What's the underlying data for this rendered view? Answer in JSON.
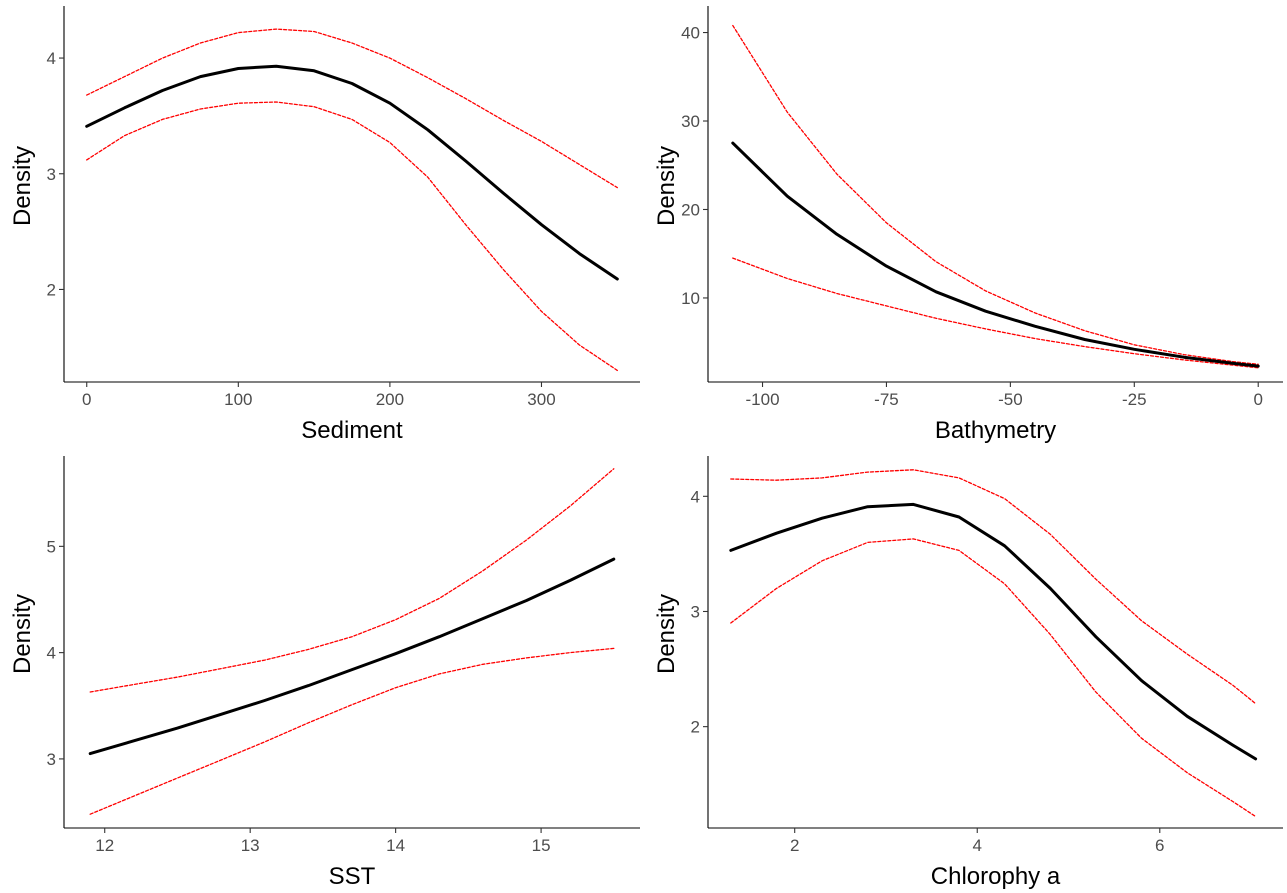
{
  "colors": {
    "fit": "#000000",
    "ci": "#ff0000",
    "axis": "#000000",
    "tick_label": "#4d4d4d",
    "background": "#ffffff"
  },
  "chart_data": [
    {
      "type": "line",
      "xlabel": "Sediment",
      "ylabel": "Density",
      "xlim": [
        -15,
        365
      ],
      "ylim": [
        1.2,
        4.45
      ],
      "xticks": [
        0,
        100,
        200,
        300
      ],
      "xtick_labels": [
        "0",
        "100",
        "200",
        "300"
      ],
      "yticks": [
        2,
        3,
        4
      ],
      "ytick_labels": [
        "2",
        "3",
        "4"
      ],
      "grid": false,
      "x": [
        0,
        25,
        50,
        75,
        100,
        125,
        150,
        175,
        200,
        225,
        250,
        275,
        300,
        325,
        350
      ],
      "series": [
        {
          "role": "fit",
          "values": [
            3.41,
            3.57,
            3.72,
            3.84,
            3.91,
            3.93,
            3.89,
            3.78,
            3.61,
            3.38,
            3.11,
            2.83,
            2.56,
            2.31,
            2.09
          ]
        },
        {
          "role": "upper",
          "values": [
            3.68,
            3.84,
            4.0,
            4.13,
            4.22,
            4.25,
            4.23,
            4.13,
            4.0,
            3.83,
            3.65,
            3.46,
            3.28,
            3.08,
            2.88
          ]
        },
        {
          "role": "lower",
          "values": [
            3.12,
            3.33,
            3.47,
            3.56,
            3.61,
            3.62,
            3.58,
            3.47,
            3.27,
            2.97,
            2.56,
            2.17,
            1.81,
            1.52,
            1.3
          ]
        }
      ]
    },
    {
      "type": "line",
      "xlabel": "Bathymetry",
      "ylabel": "Density",
      "xlim": [
        -111,
        5
      ],
      "ylim": [
        0.5,
        43
      ],
      "xticks": [
        -100,
        -75,
        -50,
        -25,
        0
      ],
      "xtick_labels": [
        "-100",
        "-75",
        "-50",
        "-25",
        "0"
      ],
      "yticks": [
        10,
        20,
        30,
        40
      ],
      "ytick_labels": [
        "10",
        "20",
        "30",
        "40"
      ],
      "grid": false,
      "x": [
        -106,
        -95,
        -85,
        -75,
        -65,
        -55,
        -45,
        -35,
        -25,
        -15,
        -5,
        0
      ],
      "series": [
        {
          "role": "fit",
          "values": [
            27.5,
            21.5,
            17.2,
            13.6,
            10.7,
            8.5,
            6.8,
            5.3,
            4.2,
            3.3,
            2.6,
            2.3
          ]
        },
        {
          "role": "upper",
          "values": [
            40.8,
            31.0,
            24.0,
            18.5,
            14.1,
            10.8,
            8.3,
            6.3,
            4.7,
            3.6,
            2.8,
            2.5
          ]
        },
        {
          "role": "lower",
          "values": [
            14.5,
            12.2,
            10.5,
            9.1,
            7.7,
            6.5,
            5.4,
            4.5,
            3.7,
            3.0,
            2.4,
            2.1
          ]
        }
      ]
    },
    {
      "type": "line",
      "xlabel": "SST",
      "ylabel": "Density",
      "xlim": [
        11.72,
        15.68
      ],
      "ylim": [
        2.35,
        5.85
      ],
      "xticks": [
        12,
        13,
        14,
        15
      ],
      "xtick_labels": [
        "12",
        "13",
        "14",
        "15"
      ],
      "yticks": [
        3,
        4,
        5
      ],
      "ytick_labels": [
        "3",
        "4",
        "5"
      ],
      "grid": false,
      "x": [
        11.9,
        12.2,
        12.5,
        12.8,
        13.1,
        13.4,
        13.7,
        14.0,
        14.3,
        14.6,
        14.9,
        15.2,
        15.5
      ],
      "series": [
        {
          "role": "fit",
          "values": [
            3.05,
            3.17,
            3.29,
            3.42,
            3.55,
            3.69,
            3.84,
            3.99,
            4.15,
            4.32,
            4.49,
            4.68,
            4.88
          ]
        },
        {
          "role": "upper",
          "values": [
            3.63,
            3.7,
            3.77,
            3.85,
            3.93,
            4.03,
            4.15,
            4.31,
            4.51,
            4.77,
            5.06,
            5.38,
            5.73
          ]
        },
        {
          "role": "lower",
          "values": [
            2.48,
            2.65,
            2.82,
            2.99,
            3.16,
            3.34,
            3.51,
            3.67,
            3.8,
            3.89,
            3.95,
            4.0,
            4.04
          ]
        }
      ]
    },
    {
      "type": "line",
      "xlabel": "Chlorophy a",
      "ylabel": "Density",
      "xlim": [
        1.05,
        7.35
      ],
      "ylim": [
        1.12,
        4.35
      ],
      "xticks": [
        2,
        4,
        6
      ],
      "xtick_labels": [
        "2",
        "4",
        "6"
      ],
      "yticks": [
        2,
        3,
        4
      ],
      "ytick_labels": [
        "2",
        "3",
        "4"
      ],
      "grid": false,
      "x": [
        1.3,
        1.8,
        2.3,
        2.8,
        3.3,
        3.8,
        4.3,
        4.8,
        5.3,
        5.8,
        6.3,
        6.8,
        7.05
      ],
      "series": [
        {
          "role": "fit",
          "values": [
            3.53,
            3.68,
            3.81,
            3.91,
            3.93,
            3.82,
            3.57,
            3.2,
            2.78,
            2.4,
            2.09,
            1.84,
            1.72
          ]
        },
        {
          "role": "upper",
          "values": [
            4.15,
            4.14,
            4.16,
            4.21,
            4.23,
            4.16,
            3.98,
            3.67,
            3.28,
            2.92,
            2.63,
            2.36,
            2.2
          ]
        },
        {
          "role": "lower",
          "values": [
            2.9,
            3.2,
            3.44,
            3.6,
            3.63,
            3.53,
            3.24,
            2.8,
            2.3,
            1.9,
            1.6,
            1.35,
            1.22
          ]
        }
      ]
    }
  ]
}
